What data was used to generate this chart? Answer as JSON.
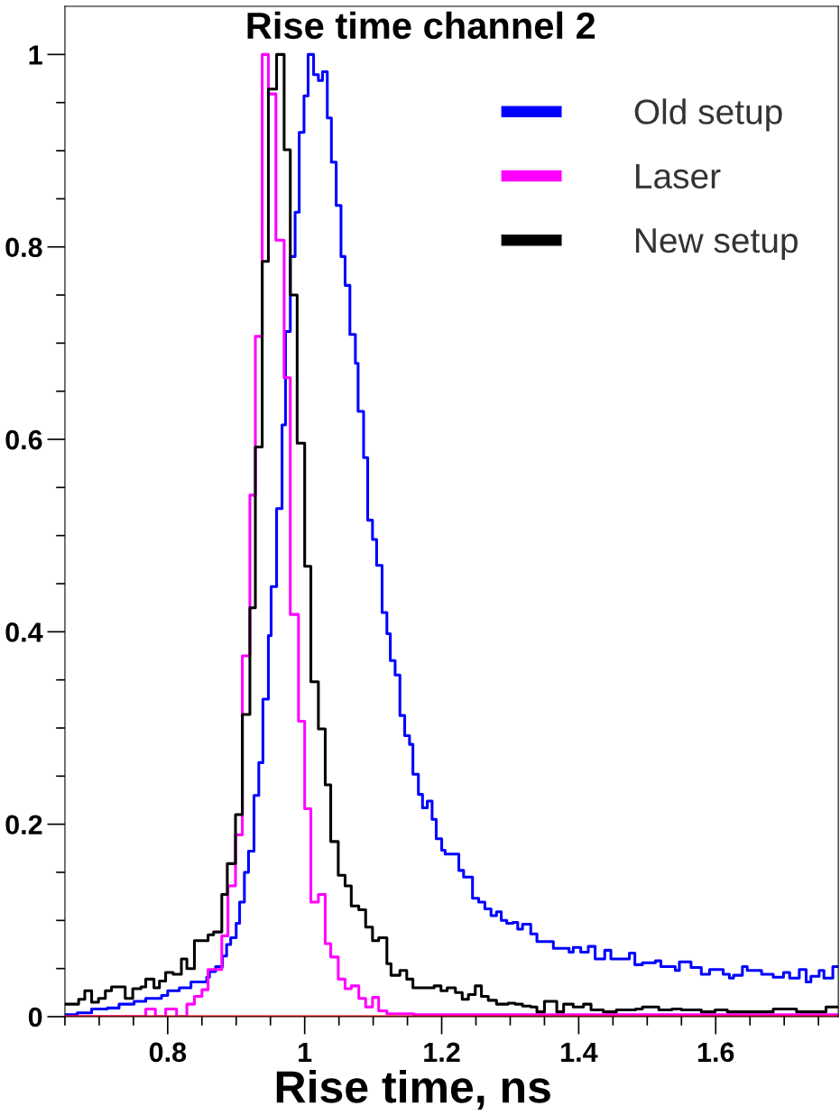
{
  "chart_data": {
    "type": "step",
    "title": "Rise time channel 2",
    "xlabel": "Rise time, ns",
    "xlim": [
      0.65,
      1.779
    ],
    "ylim": [
      0,
      1.05
    ],
    "xticks": [
      {
        "value": 0.65,
        "label": null
      },
      {
        "value": 0.7,
        "label": null
      },
      {
        "value": 0.75,
        "label": null
      },
      0.8,
      {
        "value": 0.85,
        "label": null
      },
      {
        "value": 0.9,
        "label": null
      },
      {
        "value": 0.95,
        "label": null
      },
      {
        "value": 1.0,
        "label": "1"
      },
      {
        "value": 1.05,
        "label": null
      },
      {
        "value": 1.1,
        "label": null
      },
      {
        "value": 1.15,
        "label": null
      },
      1.2,
      {
        "value": 1.25,
        "label": null
      },
      {
        "value": 1.3,
        "label": null
      },
      {
        "value": 1.35,
        "label": null
      },
      1.4,
      {
        "value": 1.45,
        "label": null
      },
      {
        "value": 1.5,
        "label": null
      },
      {
        "value": 1.55,
        "label": null
      },
      1.6,
      {
        "value": 1.65,
        "label": null
      },
      {
        "value": 1.7,
        "label": null
      },
      {
        "value": 1.75,
        "label": null
      }
    ],
    "yticks": [
      0,
      {
        "value": 0.05,
        "label": null
      },
      {
        "value": 0.1,
        "label": null
      },
      {
        "value": 0.15,
        "label": null
      },
      0.2,
      {
        "value": 0.25,
        "label": null
      },
      {
        "value": 0.3,
        "label": null
      },
      {
        "value": 0.35,
        "label": null
      },
      0.4,
      {
        "value": 0.45,
        "label": null
      },
      {
        "value": 0.5,
        "label": null
      },
      {
        "value": 0.55,
        "label": null
      },
      0.6,
      {
        "value": 0.65,
        "label": null
      },
      {
        "value": 0.7,
        "label": null
      },
      {
        "value": 0.75,
        "label": null
      },
      0.8,
      {
        "value": 0.85,
        "label": null
      },
      {
        "value": 0.9,
        "label": null
      },
      {
        "value": 0.95,
        "label": null
      },
      {
        "value": 1,
        "label": "1"
      }
    ],
    "grid": false,
    "legend": "top right",
    "series": [
      {
        "name": "Old setup",
        "color": "#0000ff",
        "x": [
          0.65,
          0.668,
          0.689,
          0.712,
          0.729,
          0.751,
          0.768,
          0.791,
          0.8,
          0.817,
          0.834,
          0.857,
          0.861,
          0.87,
          0.88,
          0.886,
          0.892,
          0.9,
          0.905,
          0.912,
          0.918,
          0.926,
          0.933,
          0.939,
          0.947,
          0.951,
          0.959,
          0.967,
          0.972,
          0.979,
          0.986,
          0.992,
          0.999,
          1.005,
          1.013,
          1.02,
          1.026,
          1.033,
          1.039,
          1.046,
          1.053,
          1.059,
          1.066,
          1.074,
          1.078,
          1.086,
          1.092,
          1.099,
          1.105,
          1.113,
          1.12,
          1.125,
          1.132,
          1.139,
          1.146,
          1.153,
          1.158,
          1.166,
          1.172,
          1.179,
          1.186,
          1.192,
          1.2,
          1.205,
          1.225,
          1.232,
          1.245,
          1.254,
          1.263,
          1.272,
          1.28,
          1.287,
          1.295,
          1.304,
          1.311,
          1.318,
          1.33,
          1.339,
          1.363,
          1.386,
          1.392,
          1.403,
          1.414,
          1.424,
          1.438,
          1.447,
          1.474,
          1.482,
          1.493,
          1.512,
          1.52,
          1.541,
          1.547,
          1.564,
          1.579,
          1.591,
          1.611,
          1.62,
          1.626,
          1.639,
          1.646,
          1.667,
          1.684,
          1.699,
          1.708,
          1.722,
          1.732,
          1.739,
          1.751,
          1.758,
          1.771,
          1.779
        ],
        "values": [
          0.002,
          0.004,
          0.008,
          0.009,
          0.013,
          0.016,
          0.019,
          0.022,
          0.027,
          0.03,
          0.036,
          0.041,
          0.047,
          0.052,
          0.063,
          0.075,
          0.082,
          0.097,
          0.119,
          0.15,
          0.172,
          0.23,
          0.264,
          0.33,
          0.396,
          0.447,
          0.528,
          0.615,
          0.712,
          0.79,
          0.836,
          0.919,
          0.957,
          1.0,
          0.979,
          0.973,
          0.982,
          0.934,
          0.888,
          0.843,
          0.79,
          0.76,
          0.709,
          0.679,
          0.629,
          0.581,
          0.516,
          0.496,
          0.469,
          0.42,
          0.398,
          0.37,
          0.355,
          0.313,
          0.292,
          0.283,
          0.252,
          0.231,
          0.217,
          0.224,
          0.205,
          0.185,
          0.173,
          0.169,
          0.152,
          0.145,
          0.123,
          0.119,
          0.112,
          0.105,
          0.109,
          0.1,
          0.097,
          0.098,
          0.091,
          0.096,
          0.086,
          0.078,
          0.071,
          0.067,
          0.072,
          0.067,
          0.073,
          0.06,
          0.069,
          0.06,
          0.066,
          0.054,
          0.056,
          0.058,
          0.052,
          0.048,
          0.057,
          0.051,
          0.044,
          0.049,
          0.044,
          0.04,
          0.043,
          0.052,
          0.048,
          0.044,
          0.041,
          0.046,
          0.04,
          0.049,
          0.036,
          0.042,
          0.048,
          0.04,
          0.052,
          0.052
        ]
      },
      {
        "name": "Laser",
        "color": "#ff00ff",
        "x": [
          0.65,
          0.768,
          0.782,
          0.797,
          0.813,
          0.828,
          0.839,
          0.85,
          0.859,
          0.879,
          0.888,
          0.899,
          0.909,
          0.92,
          0.928,
          0.938,
          0.947,
          0.958,
          0.97,
          0.979,
          0.991,
          1.0,
          1.009,
          1.02,
          1.03,
          1.038,
          1.049,
          1.059,
          1.068,
          1.079,
          1.089,
          1.099,
          1.108,
          1.12,
          1.159,
          1.779
        ],
        "values": [
          0,
          0.008,
          0,
          0.008,
          0,
          0.013,
          0.021,
          0.028,
          0.049,
          0.084,
          0.136,
          0.189,
          0.375,
          0.542,
          0.707,
          1.0,
          0.959,
          0.807,
          0.664,
          0.418,
          0.307,
          0.216,
          0.119,
          0.127,
          0.076,
          0.062,
          0.039,
          0.029,
          0.032,
          0.019,
          0.01,
          0.02,
          0.006,
          0.003,
          0.002,
          0.002
        ]
      },
      {
        "name": "New setup",
        "color": "#000000",
        "x": [
          0.65,
          0.67,
          0.679,
          0.689,
          0.699,
          0.709,
          0.718,
          0.738,
          0.749,
          0.761,
          0.768,
          0.78,
          0.788,
          0.797,
          0.808,
          0.82,
          0.828,
          0.839,
          0.859,
          0.867,
          0.879,
          0.887,
          0.899,
          0.909,
          0.92,
          0.928,
          0.938,
          0.947,
          0.959,
          0.97,
          0.979,
          0.989,
          1.0,
          1.009,
          1.02,
          1.03,
          1.038,
          1.049,
          1.059,
          1.068,
          1.079,
          1.089,
          1.099,
          1.108,
          1.12,
          1.126,
          1.139,
          1.149,
          1.158,
          1.189,
          1.199,
          1.208,
          1.22,
          1.23,
          1.239,
          1.249,
          1.258,
          1.268,
          1.28,
          1.297,
          1.307,
          1.318,
          1.33,
          1.339,
          1.35,
          1.368,
          1.378,
          1.392,
          1.407,
          1.418,
          1.436,
          1.455,
          1.483,
          1.493,
          1.517,
          1.536,
          1.55,
          1.579,
          1.599,
          1.617,
          1.684,
          1.718,
          1.761,
          1.779
        ],
        "values": [
          0.013,
          0.018,
          0.027,
          0.015,
          0.019,
          0.027,
          0.031,
          0.019,
          0.029,
          0.031,
          0.039,
          0.03,
          0.037,
          0.046,
          0.044,
          0.06,
          0.05,
          0.079,
          0.085,
          0.088,
          0.127,
          0.159,
          0.21,
          0.314,
          0.425,
          0.592,
          0.785,
          0.964,
          1.0,
          0.901,
          0.75,
          0.596,
          0.468,
          0.348,
          0.299,
          0.241,
          0.182,
          0.147,
          0.136,
          0.115,
          0.111,
          0.093,
          0.079,
          0.082,
          0.055,
          0.043,
          0.048,
          0.039,
          0.03,
          0.032,
          0.027,
          0.03,
          0.025,
          0.018,
          0.023,
          0.032,
          0.021,
          0.017,
          0.013,
          0.014,
          0.013,
          0.011,
          0.01,
          0.005,
          0.016,
          0.005,
          0.013,
          0.01,
          0.013,
          0.007,
          0.005,
          0.007,
          0.008,
          0.01,
          0.007,
          0.008,
          0.007,
          0.005,
          0.007,
          0.005,
          0.008,
          0.005,
          0.01,
          0.01
        ]
      },
      {
        "color": "#ff0000",
        "x": [
          0.65,
          1.779
        ],
        "values": [
          0,
          0
        ]
      }
    ]
  }
}
